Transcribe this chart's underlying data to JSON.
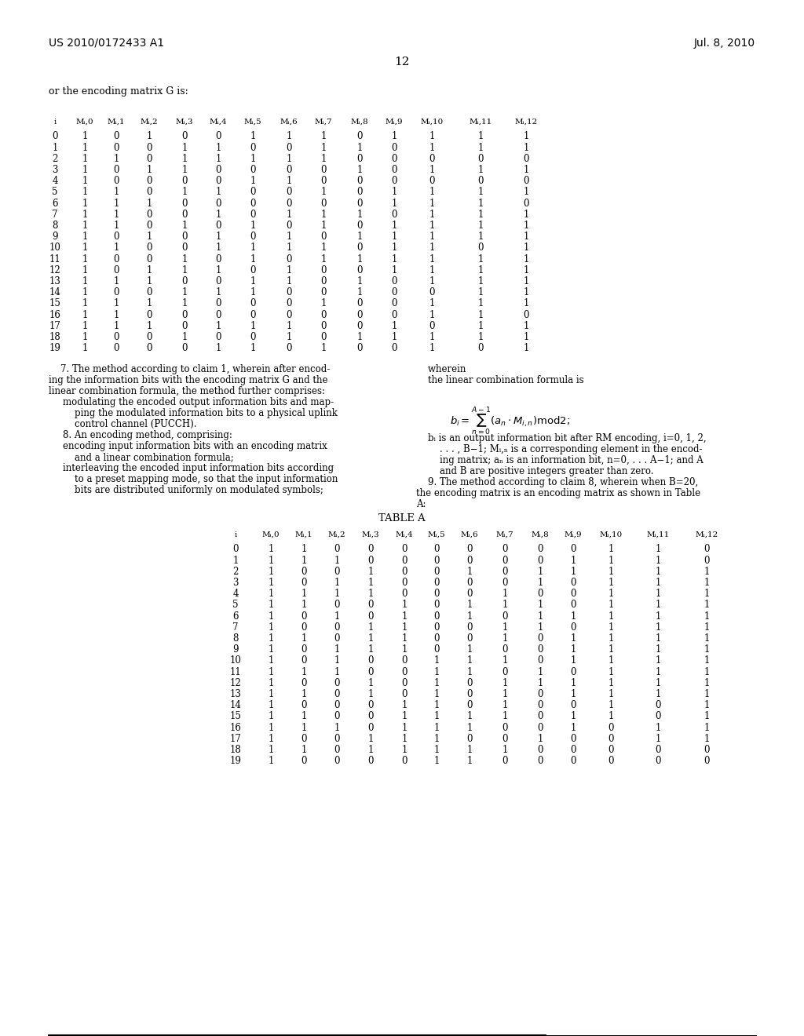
{
  "header_left": "US 2010/0172433 A1",
  "header_right": "Jul. 8, 2010",
  "page_number": "12",
  "intro_text": "or the encoding matrix G is:",
  "table1_cols": [
    "i",
    "Mᵢ,0",
    "Mᵢ,1",
    "Mᵢ,2",
    "Mᵢ,3",
    "Mᵢ,4",
    "Mᵢ,5",
    "Mᵢ,6",
    "Mᵢ,7",
    "Mᵢ,8",
    "Mᵢ,9",
    "Mᵢ,10",
    "Mᵢ,11",
    "Mᵢ,12"
  ],
  "table1_data": [
    [
      0,
      1,
      0,
      1,
      0,
      0,
      1,
      1,
      1,
      0,
      1,
      1,
      1,
      1
    ],
    [
      1,
      1,
      0,
      0,
      1,
      1,
      0,
      0,
      1,
      1,
      0,
      1,
      1,
      1
    ],
    [
      2,
      1,
      1,
      0,
      1,
      1,
      1,
      1,
      1,
      0,
      0,
      0,
      0,
      0
    ],
    [
      3,
      1,
      0,
      1,
      1,
      0,
      0,
      0,
      0,
      1,
      0,
      1,
      1,
      1
    ],
    [
      4,
      1,
      0,
      0,
      0,
      0,
      1,
      1,
      0,
      0,
      0,
      0,
      0,
      0
    ],
    [
      5,
      1,
      1,
      0,
      1,
      1,
      0,
      0,
      1,
      0,
      1,
      1,
      1,
      1
    ],
    [
      6,
      1,
      1,
      1,
      0,
      0,
      0,
      0,
      0,
      0,
      1,
      1,
      1,
      0
    ],
    [
      7,
      1,
      1,
      0,
      0,
      1,
      0,
      1,
      1,
      1,
      0,
      1,
      1,
      1
    ],
    [
      8,
      1,
      1,
      0,
      1,
      0,
      1,
      0,
      1,
      0,
      1,
      1,
      1,
      1
    ],
    [
      9,
      1,
      0,
      1,
      0,
      1,
      0,
      1,
      0,
      1,
      1,
      1,
      1,
      1
    ],
    [
      10,
      1,
      1,
      0,
      0,
      1,
      1,
      1,
      1,
      0,
      1,
      1,
      0,
      1
    ],
    [
      11,
      1,
      0,
      0,
      1,
      0,
      1,
      0,
      1,
      1,
      1,
      1,
      1,
      1
    ],
    [
      12,
      1,
      0,
      1,
      1,
      1,
      0,
      1,
      0,
      0,
      1,
      1,
      1,
      1
    ],
    [
      13,
      1,
      1,
      1,
      0,
      0,
      1,
      1,
      0,
      1,
      0,
      1,
      1,
      1
    ],
    [
      14,
      1,
      0,
      0,
      1,
      1,
      1,
      0,
      0,
      1,
      0,
      0,
      1,
      1
    ],
    [
      15,
      1,
      1,
      1,
      1,
      0,
      0,
      0,
      1,
      0,
      0,
      1,
      1,
      1
    ],
    [
      16,
      1,
      1,
      0,
      0,
      0,
      0,
      0,
      0,
      0,
      0,
      1,
      1,
      0
    ],
    [
      17,
      1,
      1,
      1,
      0,
      1,
      1,
      1,
      0,
      0,
      1,
      0,
      1,
      1
    ],
    [
      18,
      1,
      0,
      0,
      1,
      0,
      0,
      1,
      0,
      1,
      1,
      1,
      1,
      1
    ],
    [
      19,
      1,
      0,
      0,
      0,
      1,
      1,
      0,
      1,
      0,
      0,
      1,
      0,
      1
    ]
  ],
  "para7_left": "    7. The method according to claim 1, wherein after encod-\ning the information bits with the encoding matrix G and the\nlinear combination formula, the method further comprises:\n    modulating the encoded output information bits and map-\n        ping the modulated information bits to a physical uplink\n        control channel (PUCCH).\n    8. An encoding method, comprising:\n    encoding input information bits with an encoding matrix\n        and a linear combination formula;\n    interleaving the encoded input information bits according\n        to a preset mapping mode, so that the input information\n        bits are distributed uniformly on modulated symbols;",
  "para7_right_top": "    wherein\n    the linear combination formula is",
  "formula": "bᵢ = Σ(aₙ · Mᵢ,ₙ)mod2;",
  "para7_right_bottom": "    bᵢ is an output information bit after RM encoding, i=0, 1, 2,\n        . . . , B−1; Mᵢ,ₙ is a corresponding element in the encod-\n        ing matrix; aₙ is an information bit, n=0, . . . A−1; and A\n        and B are positive integers greater than zero.\n    9. The method according to claim 8, wherein when B=20,\nthe encoding matrix is an encoding matrix as shown in Table\nA:",
  "table_a_title": "TABLE A",
  "table2_cols": [
    "i",
    "Mᵢ,0",
    "Mᵢ,1",
    "Mᵢ,2",
    "Mᵢ,3",
    "Mᵢ,4",
    "Mᵢ,5",
    "Mᵢ,6",
    "Mᵢ,7",
    "Mᵢ,8",
    "Mᵢ,9",
    "Mᵢ,10",
    "Mᵢ,11",
    "Mᵢ,12"
  ],
  "table2_data": [
    [
      0,
      1,
      1,
      0,
      0,
      0,
      0,
      0,
      0,
      0,
      0,
      1,
      1,
      0
    ],
    [
      1,
      1,
      1,
      1,
      0,
      0,
      0,
      0,
      0,
      0,
      1,
      1,
      1,
      0
    ],
    [
      2,
      1,
      0,
      0,
      1,
      0,
      0,
      1,
      0,
      1,
      1,
      1,
      1,
      1
    ],
    [
      3,
      1,
      0,
      1,
      1,
      0,
      0,
      0,
      0,
      1,
      0,
      1,
      1,
      1
    ],
    [
      4,
      1,
      1,
      1,
      1,
      0,
      0,
      0,
      1,
      0,
      0,
      1,
      1,
      1
    ],
    [
      5,
      1,
      1,
      0,
      0,
      1,
      0,
      1,
      1,
      1,
      0,
      1,
      1,
      1
    ],
    [
      6,
      1,
      0,
      1,
      0,
      1,
      0,
      1,
      0,
      1,
      1,
      1,
      1,
      1
    ],
    [
      7,
      1,
      0,
      0,
      1,
      1,
      0,
      0,
      1,
      1,
      0,
      1,
      1,
      1
    ],
    [
      8,
      1,
      1,
      0,
      1,
      1,
      0,
      0,
      1,
      0,
      1,
      1,
      1,
      1
    ],
    [
      9,
      1,
      0,
      1,
      1,
      1,
      0,
      1,
      0,
      0,
      1,
      1,
      1,
      1
    ],
    [
      10,
      1,
      0,
      1,
      0,
      0,
      1,
      1,
      1,
      0,
      1,
      1,
      1,
      1
    ],
    [
      11,
      1,
      1,
      1,
      0,
      0,
      1,
      1,
      0,
      1,
      0,
      1,
      1,
      1
    ],
    [
      12,
      1,
      0,
      0,
      1,
      0,
      1,
      0,
      1,
      1,
      1,
      1,
      1,
      1
    ],
    [
      13,
      1,
      1,
      0,
      1,
      0,
      1,
      0,
      1,
      0,
      1,
      1,
      1,
      1
    ],
    [
      14,
      1,
      0,
      0,
      0,
      1,
      1,
      0,
      1,
      0,
      0,
      1,
      0,
      1
    ],
    [
      15,
      1,
      1,
      0,
      0,
      1,
      1,
      1,
      1,
      0,
      1,
      1,
      0,
      1
    ],
    [
      16,
      1,
      1,
      1,
      0,
      1,
      1,
      1,
      0,
      0,
      1,
      0,
      1,
      1
    ],
    [
      17,
      1,
      0,
      0,
      1,
      1,
      1,
      0,
      0,
      1,
      0,
      0,
      1,
      1
    ],
    [
      18,
      1,
      1,
      0,
      1,
      1,
      1,
      1,
      1,
      0,
      0,
      0,
      0,
      0
    ],
    [
      19,
      1,
      0,
      0,
      0,
      0,
      1,
      1,
      0,
      0,
      0,
      0,
      0,
      0
    ]
  ]
}
